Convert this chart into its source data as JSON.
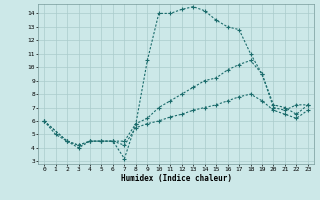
{
  "xlabel": "Humidex (Indice chaleur)",
  "bg_color": "#cce8e8",
  "grid_color": "#aacccc",
  "line_color": "#1a6b6b",
  "xlim": [
    -0.5,
    23.5
  ],
  "ylim": [
    2.8,
    14.7
  ],
  "yticks": [
    3,
    4,
    5,
    6,
    7,
    8,
    9,
    10,
    11,
    12,
    13,
    14
  ],
  "xticks": [
    0,
    1,
    2,
    3,
    4,
    5,
    6,
    7,
    8,
    9,
    10,
    11,
    12,
    13,
    14,
    15,
    16,
    17,
    18,
    19,
    20,
    21,
    22,
    23
  ],
  "series": [
    {
      "x": [
        0,
        1,
        2,
        3,
        4,
        5,
        6,
        7,
        8,
        9,
        10,
        11,
        12,
        13,
        14,
        15,
        16,
        17,
        18,
        19,
        20,
        21,
        22,
        23
      ],
      "y": [
        6,
        5,
        4.5,
        4,
        4.5,
        4.5,
        4.5,
        3.2,
        5.8,
        10.5,
        14.0,
        14.0,
        14.3,
        14.5,
        14.2,
        13.5,
        13.0,
        12.8,
        11.0,
        9.5,
        7.0,
        6.8,
        7.2,
        7.2
      ]
    },
    {
      "x": [
        0,
        2,
        3,
        4,
        5,
        6,
        7,
        8,
        9,
        10,
        11,
        12,
        13,
        14,
        15,
        16,
        17,
        18,
        19,
        20,
        21,
        22,
        23
      ],
      "y": [
        6,
        4.5,
        4.2,
        4.5,
        4.5,
        4.5,
        4.5,
        5.8,
        6.2,
        7.0,
        7.5,
        8.0,
        8.5,
        9.0,
        9.2,
        9.8,
        10.2,
        10.5,
        9.5,
        7.2,
        7.0,
        6.5,
        7.2
      ]
    },
    {
      "x": [
        0,
        2,
        3,
        4,
        5,
        6,
        7,
        8,
        9,
        10,
        11,
        12,
        13,
        14,
        15,
        16,
        17,
        18,
        19,
        20,
        21,
        22,
        23
      ],
      "y": [
        6,
        4.5,
        4.2,
        4.5,
        4.5,
        4.5,
        4.2,
        5.5,
        5.8,
        6.0,
        6.3,
        6.5,
        6.8,
        7.0,
        7.2,
        7.5,
        7.8,
        8.0,
        7.5,
        6.8,
        6.5,
        6.2,
        6.8
      ]
    }
  ]
}
